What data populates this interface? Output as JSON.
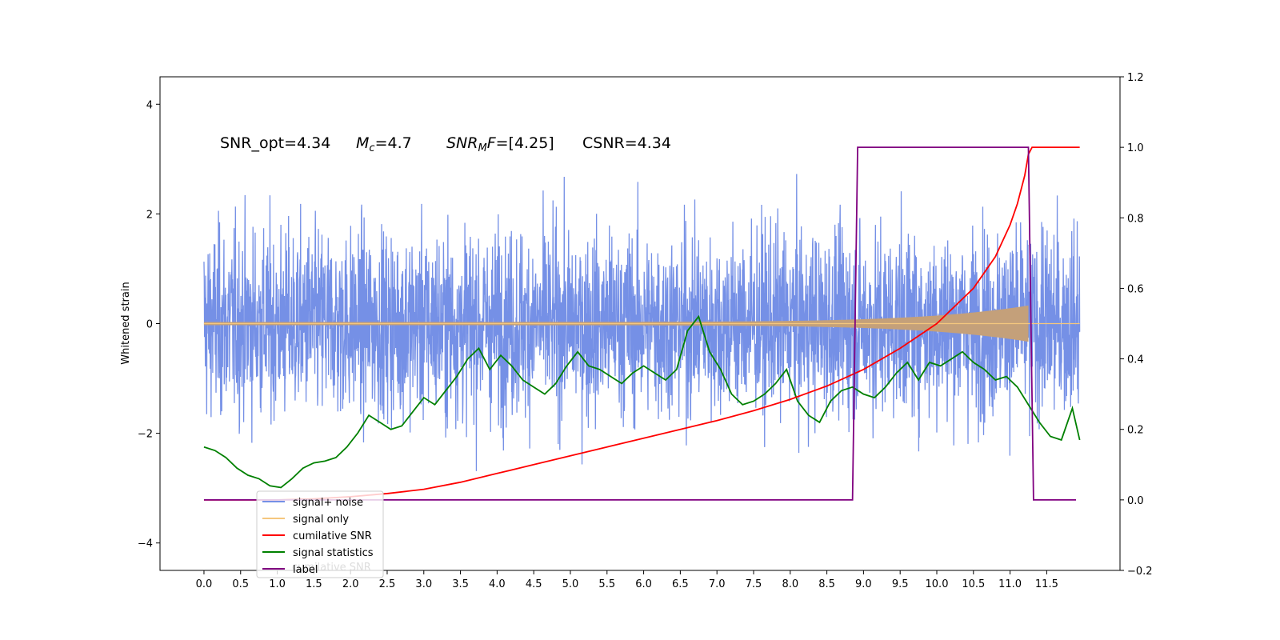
{
  "chart_data": {
    "type": "line",
    "ylabel": "Whitened strain",
    "x_ticks": [
      "0.0",
      "0.5",
      "1.0",
      "1.5",
      "2.0",
      "2.5",
      "3.0",
      "3.5",
      "4.0",
      "4.5",
      "5.0",
      "5.5",
      "6.0",
      "6.5",
      "7.0",
      "7.5",
      "8.0",
      "8.5",
      "9.0",
      "9.5",
      "10.0",
      "10.5",
      "11.0",
      "11.5"
    ],
    "xlim": [
      -0.6,
      12.5
    ],
    "ylim_left": [
      -4.5,
      4.5
    ],
    "y_ticks_left": [
      "4",
      "2",
      "0",
      "−2",
      "−4"
    ],
    "ylim_right": [
      -0.2,
      1.2
    ],
    "y_ticks_right": [
      "1.2",
      "1.0",
      "0.8",
      "0.6",
      "0.4",
      "0.2",
      "0.0",
      "−0.2"
    ],
    "annotation": {
      "snr_opt": "SNR_opt=4.34",
      "mc_symbol": "M",
      "mc_sub": "c",
      "mc_value": "=4.7",
      "snrmf_symbol": "SNR",
      "snrmf_sub": "M",
      "snrmf_f": "F",
      "snrmf_value": "=[4.25]",
      "csnr": "CSNR=4.34"
    },
    "legend": [
      {
        "label": "signal+ noise",
        "color": "#7590e6"
      },
      {
        "label": "signal only",
        "color": "#f5c77e"
      },
      {
        "label": "cumilative SNR",
        "color": "#ff0000"
      },
      {
        "label": "signal statistics",
        "color": "#008000"
      },
      {
        "label": "label",
        "color": "#800080"
      }
    ],
    "legend_hidden_text": "cumilative SNR",
    "series": [
      {
        "name": "signal statistics",
        "axis": "right",
        "x": [
          0.0,
          0.15,
          0.3,
          0.45,
          0.6,
          0.75,
          0.9,
          1.05,
          1.2,
          1.35,
          1.5,
          1.65,
          1.8,
          1.95,
          2.1,
          2.25,
          2.4,
          2.55,
          2.7,
          2.85,
          3.0,
          3.15,
          3.3,
          3.45,
          3.6,
          3.75,
          3.9,
          4.05,
          4.2,
          4.35,
          4.5,
          4.65,
          4.8,
          4.95,
          5.1,
          5.25,
          5.4,
          5.55,
          5.7,
          5.85,
          6.0,
          6.15,
          6.3,
          6.45,
          6.6,
          6.75,
          6.9,
          7.05,
          7.2,
          7.35,
          7.5,
          7.65,
          7.8,
          7.95,
          8.1,
          8.25,
          8.4,
          8.55,
          8.7,
          8.85,
          9.0,
          9.15,
          9.3,
          9.45,
          9.6,
          9.75,
          9.9,
          10.05,
          10.2,
          10.35,
          10.5,
          10.65,
          10.8,
          10.95,
          11.1,
          11.25,
          11.4,
          11.55,
          11.7,
          11.85,
          11.95
        ],
        "y": [
          0.15,
          0.14,
          0.12,
          0.09,
          0.07,
          0.06,
          0.04,
          0.035,
          0.06,
          0.09,
          0.105,
          0.11,
          0.12,
          0.15,
          0.19,
          0.24,
          0.22,
          0.2,
          0.21,
          0.25,
          0.29,
          0.27,
          0.31,
          0.35,
          0.4,
          0.43,
          0.37,
          0.41,
          0.38,
          0.34,
          0.32,
          0.3,
          0.33,
          0.38,
          0.42,
          0.38,
          0.37,
          0.35,
          0.33,
          0.36,
          0.38,
          0.36,
          0.34,
          0.37,
          0.48,
          0.52,
          0.42,
          0.37,
          0.3,
          0.27,
          0.28,
          0.3,
          0.33,
          0.37,
          0.28,
          0.24,
          0.22,
          0.28,
          0.31,
          0.32,
          0.3,
          0.29,
          0.32,
          0.36,
          0.39,
          0.34,
          0.39,
          0.38,
          0.4,
          0.42,
          0.39,
          0.37,
          0.34,
          0.35,
          0.32,
          0.27,
          0.22,
          0.18,
          0.17,
          0.26,
          0.17
        ]
      },
      {
        "name": "cumilative SNR",
        "axis": "right",
        "x": [
          0.0,
          1.0,
          1.5,
          2.0,
          2.5,
          3.0,
          3.5,
          4.0,
          4.5,
          5.0,
          5.5,
          6.0,
          6.5,
          7.0,
          7.5,
          8.0,
          8.5,
          9.0,
          9.5,
          10.0,
          10.5,
          10.8,
          11.0,
          11.1,
          11.2,
          11.25,
          11.3,
          11.95
        ],
        "y": [
          0.0,
          0.0,
          0.003,
          0.009,
          0.018,
          0.03,
          0.05,
          0.075,
          0.1,
          0.125,
          0.15,
          0.175,
          0.2,
          0.225,
          0.253,
          0.285,
          0.323,
          0.37,
          0.43,
          0.5,
          0.6,
          0.69,
          0.78,
          0.84,
          0.92,
          0.98,
          1.0,
          1.0
        ]
      },
      {
        "name": "label",
        "axis": "right",
        "x": [
          0.0,
          8.85,
          8.92,
          11.25,
          11.32,
          11.9
        ],
        "y": [
          0.0,
          0.0,
          1.0,
          1.0,
          0.0,
          0.0
        ]
      }
    ]
  }
}
